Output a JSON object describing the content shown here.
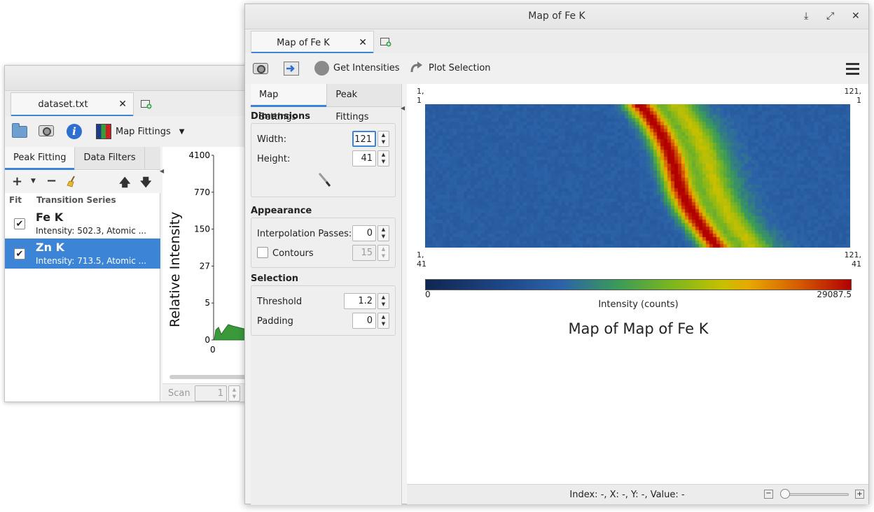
{
  "back_window": {
    "tab_label": "dataset.txt",
    "toolbar": {
      "map_fittings_label": "Map Fittings"
    },
    "subtabs": [
      "Peak Fitting",
      "Data Filters"
    ],
    "list_headers": {
      "fit": "Fit",
      "series": "Transition Series"
    },
    "rows": [
      {
        "name": "Fe K",
        "desc": "Intensity: 502.3, Atomic ...",
        "checked": true,
        "selected": false
      },
      {
        "name": "Zn K",
        "desc": "Intensity: 713.5, Atomic ...",
        "checked": true,
        "selected": true
      }
    ],
    "plot": {
      "ylabel": "Relative Intensity",
      "yticks": [
        "4100",
        "770",
        "150",
        "27",
        "5",
        "0"
      ],
      "xticks": [
        "0"
      ],
      "scan_label": "Scan",
      "scan_value": "1"
    }
  },
  "front_window": {
    "title": "Map of Fe K",
    "tab_label": "Map of Fe K",
    "toolbar": {
      "get_intensities": "Get Intensities",
      "plot_selection": "Plot Selection"
    },
    "subtabs": [
      "Map Settings",
      "Peak Fittings"
    ],
    "dimensions": {
      "title": "Dimensions",
      "width_label": "Width:",
      "width_value": "121",
      "height_label": "Height:",
      "height_value": "41"
    },
    "appearance": {
      "title": "Appearance",
      "interp_label": "Interpolation Passes:",
      "interp_value": "0",
      "contours_label": "Contours",
      "contours_value": "15",
      "contours_checked": false
    },
    "selection": {
      "title": "Selection",
      "threshold_label": "Threshold",
      "threshold_value": "1.2",
      "padding_label": "Padding",
      "padding_value": "0"
    },
    "map": {
      "corner_tl": [
        "1,",
        "1"
      ],
      "corner_tr": [
        "121,",
        "1"
      ],
      "corner_bl": [
        "1,",
        "41"
      ],
      "corner_br": [
        "121,",
        "41"
      ],
      "scale_min": "0",
      "scale_max": "29087.5",
      "scale_label": "Intensity (counts)",
      "title": "Map of Map of Fe K",
      "cols": 121,
      "rows": 41
    },
    "status": "Index: -, X: -, Y: -, Value: -",
    "zoom_fraction": 0.0
  },
  "colors": {
    "accent": "#3c85d6",
    "selection": "#3c85d6"
  }
}
